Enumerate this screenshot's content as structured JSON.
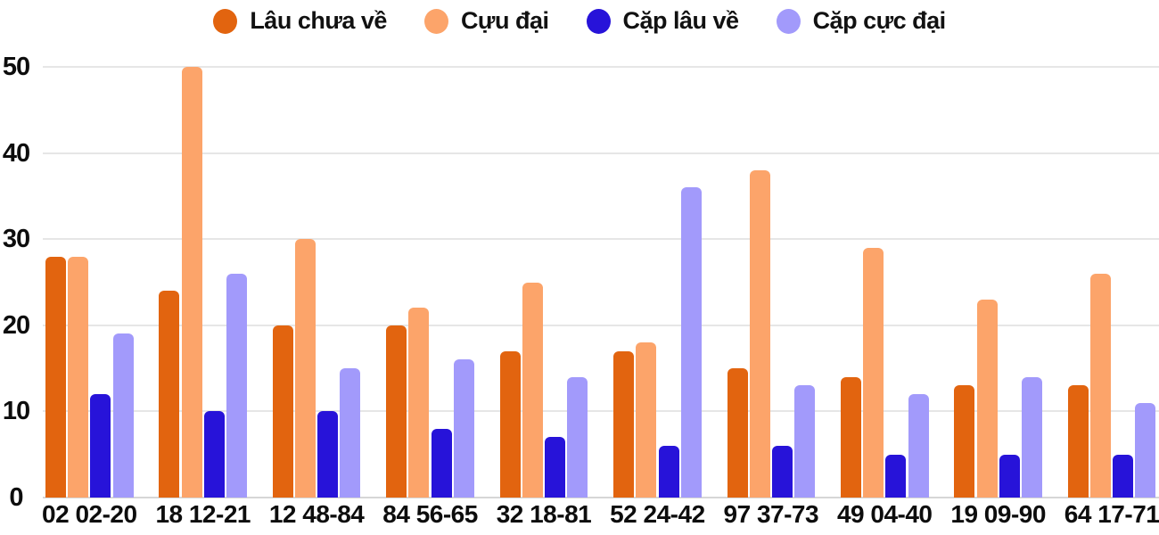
{
  "chart_data": {
    "type": "bar",
    "title": "",
    "xlabel": "",
    "ylabel": "",
    "categories": [
      "02 02-20",
      "18 12-21",
      "12 48-84",
      "84 56-65",
      "32 18-81",
      "52 24-42",
      "97 37-73",
      "49 04-40",
      "19 09-90",
      "64 17-71"
    ],
    "series": [
      {
        "name": "Lâu chưa về",
        "color": "#e2640f",
        "values": [
          28,
          24,
          20,
          20,
          17,
          17,
          15,
          14,
          13,
          13
        ]
      },
      {
        "name": "Cựu đại",
        "color": "#fca46a",
        "values": [
          28,
          50,
          30,
          22,
          25,
          18,
          38,
          29,
          23,
          26
        ]
      },
      {
        "name": "Cặp lâu về",
        "color": "#2713d9",
        "values": [
          12,
          10,
          10,
          8,
          7,
          6,
          6,
          5,
          5,
          5
        ]
      },
      {
        "name": "Cặp cực đại",
        "color": "#a29afb",
        "values": [
          19,
          26,
          15,
          16,
          14,
          36,
          13,
          12,
          14,
          11
        ]
      }
    ],
    "ylim": [
      0,
      50
    ],
    "yticks": [
      "0",
      "10",
      "20",
      "30",
      "40",
      "50"
    ],
    "grid": true,
    "legend_position": "top",
    "colors": {
      "grid": "#e6e6e6",
      "axis_line": "#d6d6d6",
      "text": "#0d0d0d",
      "background": "#ffffff"
    }
  }
}
